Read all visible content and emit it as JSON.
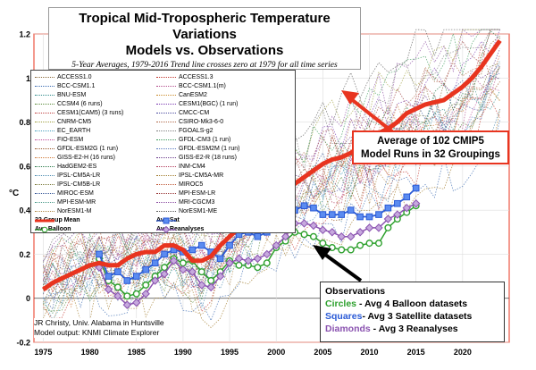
{
  "chart_data": {
    "type": "line",
    "title": "Tropical Mid-Tropospheric Temperature Variations",
    "title_line2": "Models vs. Observations",
    "subtitle": "5-Year Averages, 1979-2016 Trend line crosses zero at 1979 for all time series",
    "ylabel": "°C",
    "xlim": [
      1974,
      2025
    ],
    "ylim": [
      -0.2,
      1.2
    ],
    "x_ticks": [
      1975,
      1980,
      1985,
      1990,
      1995,
      2000,
      2005,
      2010,
      2015,
      2020
    ],
    "y_ticks": [
      -0.2,
      0,
      0.2,
      0.4,
      0.6,
      0.8,
      1,
      1.2
    ],
    "grid": true,
    "legend_placement": "top-left",
    "colors": {
      "model_mean": "#e8341f",
      "satellite": "#2a5ad6",
      "balloon": "#2da02d",
      "reanalysis": "#8a52b0",
      "frame_red": "#e8341f"
    },
    "model_legend": [
      {
        "name": "ACCESS1.0",
        "color": "#8a6a3a"
      },
      {
        "name": "ACCESS1.3",
        "color": "#c0362c"
      },
      {
        "name": "BCC-CSM1.1",
        "color": "#3a6ab0"
      },
      {
        "name": "BCC-CSM1.1(m)",
        "color": "#b04a8a"
      },
      {
        "name": "BNU-ESM",
        "color": "#2e8a8a"
      },
      {
        "name": "CanESM2",
        "color": "#c98a2a"
      },
      {
        "name": "CCSM4 (6 runs)",
        "color": "#5a8a3a"
      },
      {
        "name": "CESM1(BGC) (1 run)",
        "color": "#7a3ab0"
      },
      {
        "name": "CESM1(CAM5) (3 runs)",
        "color": "#c04040"
      },
      {
        "name": "CMCC-CM",
        "color": "#4a4aa0"
      },
      {
        "name": "CNRM-CM5",
        "color": "#a0a040"
      },
      {
        "name": "CSIRO-Mk3-6-0",
        "color": "#b06a4a"
      },
      {
        "name": "EC_EARTH",
        "color": "#4aa0c0"
      },
      {
        "name": "FGOALS-g2",
        "color": "#808080"
      },
      {
        "name": "FIO-ESM",
        "color": "#c04a9a"
      },
      {
        "name": "GFDL-CM3 (1 run)",
        "color": "#3a9a5a"
      },
      {
        "name": "GFDL-ESM2G (1 run)",
        "color": "#9a5a2a"
      },
      {
        "name": "GFDL-ESM2M (1 run)",
        "color": "#5a7ac0"
      },
      {
        "name": "GISS-E2-H (16 runs)",
        "color": "#d07a3a"
      },
      {
        "name": "GISS-E2-R (18 runs)",
        "color": "#6a3a8a"
      },
      {
        "name": "HadGEM2-ES",
        "color": "#2a7a4a"
      },
      {
        "name": "INM-CM4",
        "color": "#b03a5a"
      },
      {
        "name": "IPSL-CM5A-LR",
        "color": "#4a8ab0"
      },
      {
        "name": "IPSL-CM5A-MR",
        "color": "#a07a2a"
      },
      {
        "name": "IPSL-CM5B-LR",
        "color": "#7a7a3a"
      },
      {
        "name": "MIROC5",
        "color": "#c05a3a"
      },
      {
        "name": "MIROC-ESM",
        "color": "#3a5a9a"
      },
      {
        "name": "MPI-ESM-LR",
        "color": "#9a3a3a"
      },
      {
        "name": "MPI-ESM-MR",
        "color": "#4a9a8a"
      },
      {
        "name": "MRI-CGCM3",
        "color": "#8a4aa0"
      },
      {
        "name": "NorESM1-M",
        "color": "#b08a4a"
      },
      {
        "name": "NorESM1-ME",
        "color": "#5a5a5a"
      }
    ],
    "legend_series": [
      {
        "name": "32 Group Mean",
        "color": "#e8341f",
        "marker": "none"
      },
      {
        "name": "Avg Sat",
        "color": "#2a5ad6",
        "marker": "square"
      },
      {
        "name": "Avg Balloon",
        "color": "#2da02d",
        "marker": "circle"
      },
      {
        "name": "Avg Reanalyses",
        "color": "#8a52b0",
        "marker": "diamond"
      }
    ],
    "series": [
      {
        "name": "32 Group Mean",
        "x": [
          1975,
          1976,
          1977,
          1978,
          1979,
          1980,
          1981,
          1982,
          1983,
          1984,
          1985,
          1986,
          1987,
          1988,
          1989,
          1990,
          1991,
          1992,
          1993,
          1994,
          1995,
          1996,
          1997,
          1998,
          1999,
          2000,
          2001,
          2002,
          2003,
          2004,
          2005,
          2006,
          2007,
          2008,
          2009,
          2010,
          2011,
          2012,
          2013,
          2014,
          2015,
          2016,
          2017,
          2018,
          2019,
          2020,
          2021,
          2022,
          2023,
          2024
        ],
        "y": [
          0.04,
          0.07,
          0.09,
          0.11,
          0.13,
          0.15,
          0.16,
          0.15,
          0.15,
          0.18,
          0.2,
          0.21,
          0.21,
          0.24,
          0.24,
          0.22,
          0.17,
          0.17,
          0.19,
          0.24,
          0.28,
          0.32,
          0.37,
          0.42,
          0.45,
          0.47,
          0.49,
          0.52,
          0.55,
          0.58,
          0.61,
          0.63,
          0.64,
          0.66,
          0.69,
          0.73,
          0.75,
          0.77,
          0.8,
          0.84,
          0.86,
          0.88,
          0.89,
          0.9,
          0.93,
          0.96,
          1.0,
          1.05,
          1.11,
          1.17
        ]
      },
      {
        "name": "Avg Sat",
        "x": [
          1981,
          1982,
          1983,
          1984,
          1985,
          1986,
          1987,
          1988,
          1989,
          1990,
          1991,
          1992,
          1993,
          1994,
          1995,
          1996,
          1997,
          1998,
          1999,
          2000,
          2001,
          2002,
          2003,
          2004,
          2005,
          2006,
          2007,
          2008,
          2009,
          2010,
          2011,
          2012,
          2013,
          2014,
          2015
        ],
        "y": [
          0.2,
          0.1,
          0.12,
          0.08,
          0.1,
          0.13,
          0.16,
          0.2,
          0.22,
          0.21,
          0.22,
          0.24,
          0.21,
          0.18,
          0.24,
          0.29,
          0.3,
          0.28,
          0.3,
          0.33,
          0.38,
          0.4,
          0.42,
          0.41,
          0.38,
          0.38,
          0.38,
          0.4,
          0.37,
          0.37,
          0.38,
          0.41,
          0.43,
          0.46,
          0.5
        ]
      },
      {
        "name": "Avg Balloon",
        "x": [
          1981,
          1982,
          1983,
          1984,
          1985,
          1986,
          1987,
          1988,
          1989,
          1990,
          1991,
          1992,
          1993,
          1994,
          1995,
          1996,
          1997,
          1998,
          1999,
          2000,
          2001,
          2002,
          2003,
          2004,
          2005,
          2006,
          2007,
          2008,
          2009,
          2010,
          2011,
          2012,
          2013,
          2014,
          2015
        ],
        "y": [
          0.18,
          0.08,
          0.05,
          0.01,
          0.02,
          0.06,
          0.1,
          0.14,
          0.18,
          0.16,
          0.17,
          0.12,
          0.08,
          0.12,
          0.17,
          0.15,
          0.15,
          0.14,
          0.16,
          0.23,
          0.26,
          0.3,
          0.29,
          0.28,
          0.25,
          0.23,
          0.22,
          0.22,
          0.24,
          0.25,
          0.25,
          0.32,
          0.36,
          0.39,
          0.42
        ]
      },
      {
        "name": "Avg Reanalyses",
        "x": [
          1981,
          1982,
          1983,
          1984,
          1985,
          1986,
          1987,
          1988,
          1989,
          1990,
          1991,
          1992,
          1993,
          1994,
          1995,
          1996,
          1997,
          1998,
          1999,
          2000,
          2001,
          2002,
          2003,
          2004,
          2005,
          2006,
          2007,
          2008,
          2009,
          2010,
          2011,
          2012,
          2013,
          2014,
          2015
        ],
        "y": [
          0.14,
          0.04,
          0.01,
          -0.03,
          -0.02,
          0.02,
          0.08,
          0.11,
          0.17,
          0.13,
          0.12,
          0.06,
          0.05,
          0.1,
          0.16,
          0.18,
          0.17,
          0.18,
          0.2,
          0.24,
          0.28,
          0.34,
          0.34,
          0.33,
          0.31,
          0.3,
          0.28,
          0.28,
          0.3,
          0.32,
          0.32,
          0.36,
          0.38,
          0.41,
          0.43
        ]
      }
    ],
    "callout_model": {
      "line1": "Average of 102 CMIP5",
      "line2": "Model Runs in 32 Groupings"
    },
    "observations_box": {
      "title": "Observations",
      "circles_word": "Circles",
      "circles_text": " - Avg 4 Balloon datasets",
      "squares_word": "Squares",
      "squares_text": "- Avg 3 Satellite datasets",
      "diamonds_word": "Diamonds",
      "diamonds_text": " - Avg 3 Reanalyses"
    },
    "credit": {
      "line1": "JR Christy, Univ. Alabama in Huntsville",
      "line2": "Model output: KNMI Climate Explorer"
    }
  }
}
